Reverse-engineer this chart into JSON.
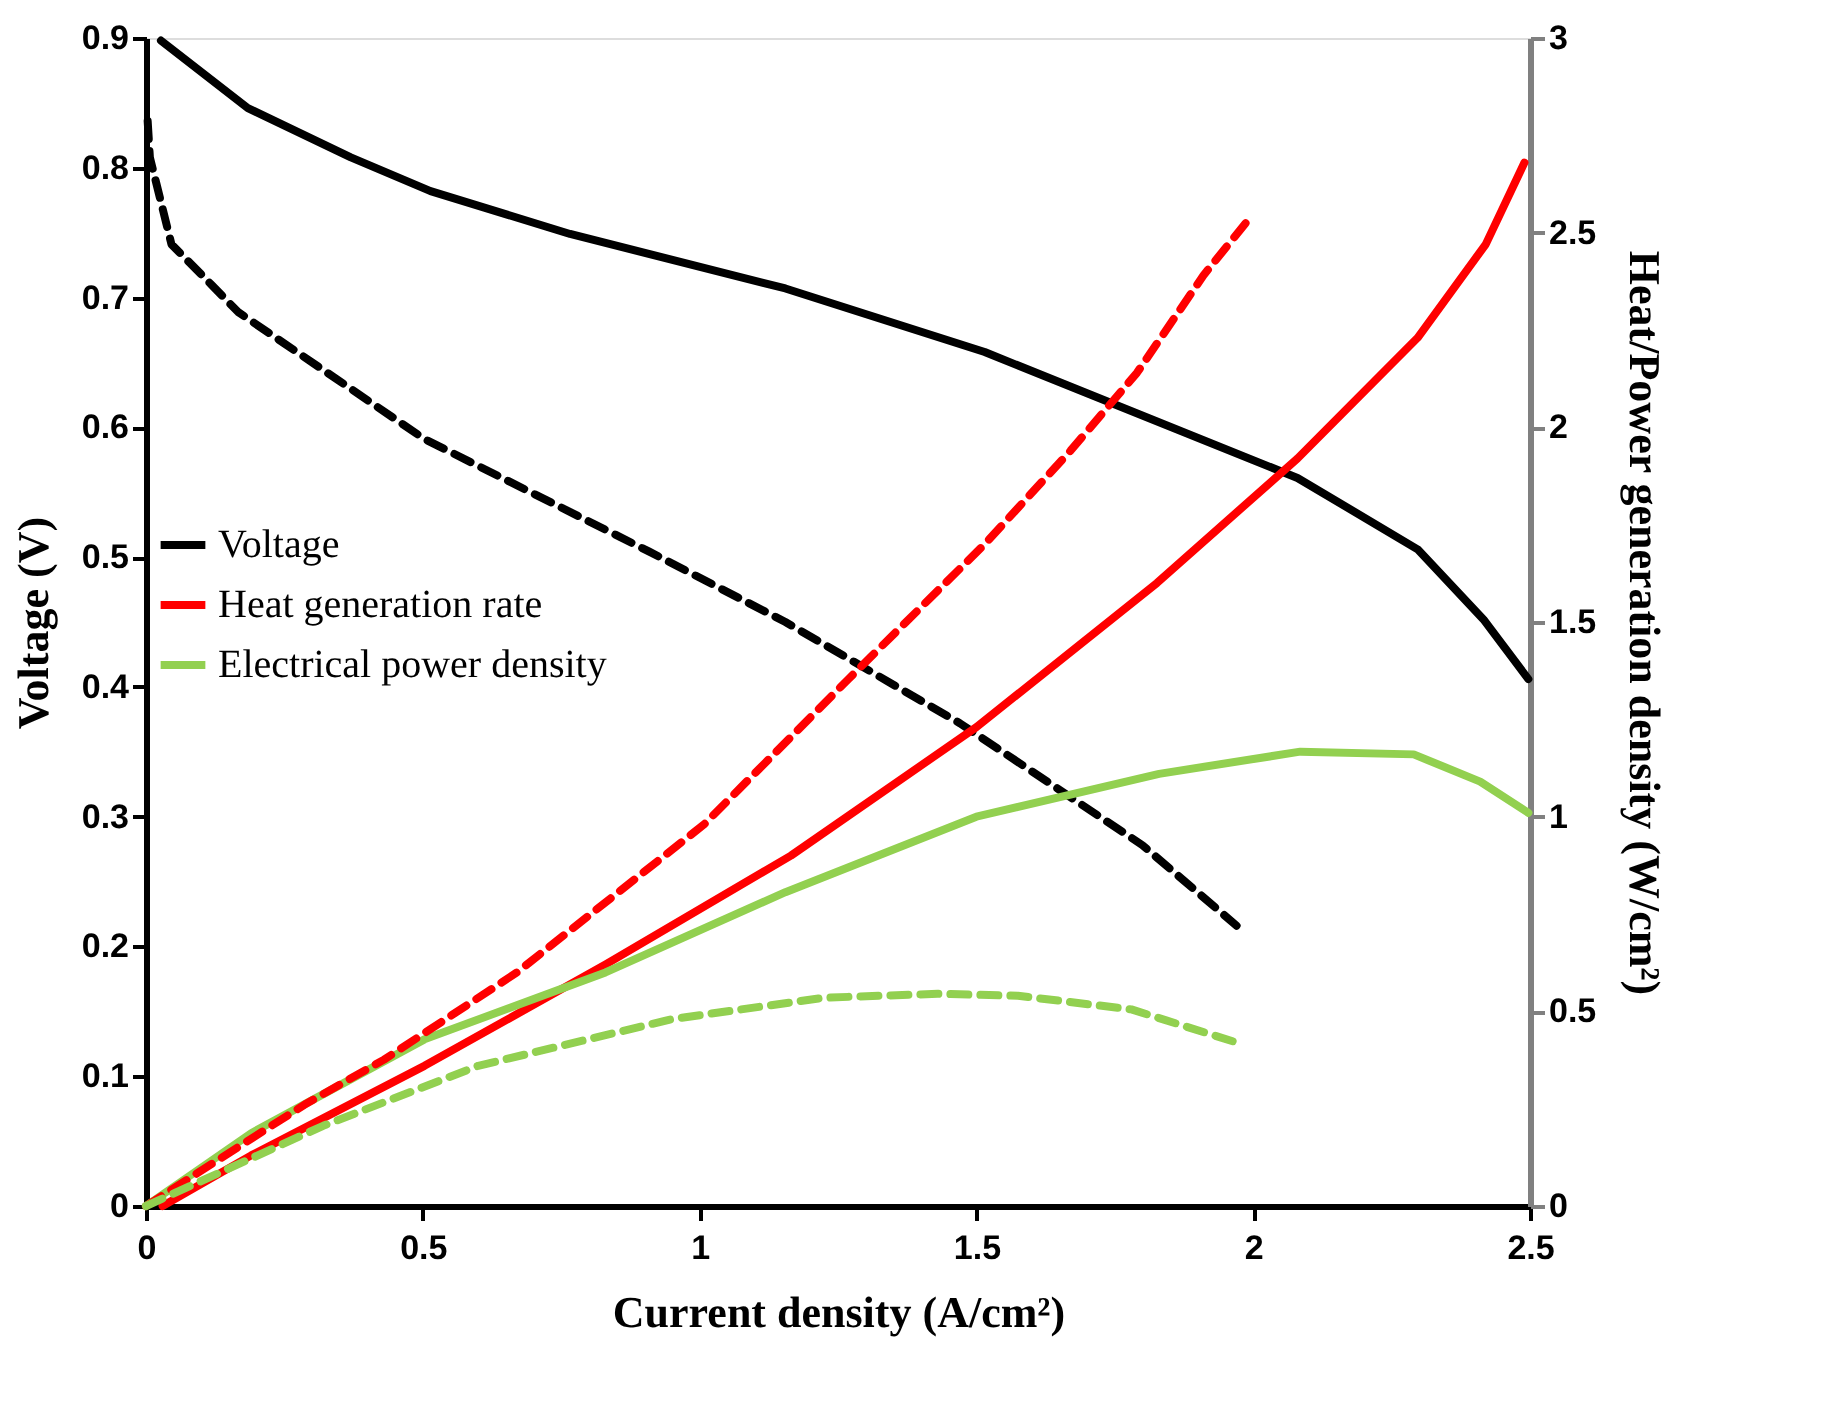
{
  "chart_data": {
    "type": "line",
    "xlabel": "Current density (A/cm²)",
    "ylabel": "Voltage (V)",
    "y2label": "Heat/Power  generation density (W/cm²)",
    "xlim": [
      0,
      2.5
    ],
    "xticks": [
      0,
      0.5,
      1,
      1.5,
      2,
      2.5
    ],
    "ylim": [
      0,
      0.9
    ],
    "yticks": [
      0,
      0.1,
      0.2,
      0.3,
      0.4,
      0.5,
      0.6,
      0.7,
      0.8,
      0.9
    ],
    "y2lim": [
      0,
      3
    ],
    "y2ticks": [
      0,
      0.5,
      1,
      1.5,
      2,
      2.5,
      3
    ],
    "legend": "left",
    "grid": false,
    "marker": "none",
    "series": [
      {
        "name": "Voltage",
        "color": "#000000",
        "line_style": "solid",
        "axis": "y",
        "x": [
          0.027,
          0.184,
          0.37,
          0.514,
          0.766,
          1.155,
          1.515,
          2.08,
          2.297,
          2.416,
          2.497
        ],
        "values": [
          0.898,
          0.846,
          0.808,
          0.782,
          0.749,
          0.707,
          0.658,
          0.561,
          0.506,
          0.452,
          0.406
        ]
      },
      {
        "name": "Heat generation rate",
        "color": "#ff0000",
        "line_style": "solid",
        "axis": "y2",
        "x": [
          0.03,
          0.19,
          0.503,
          0.83,
          1.165,
          1.5,
          1.826,
          2.08,
          2.297,
          2.42,
          2.49
        ],
        "values": [
          0,
          0.13,
          0.36,
          0.62,
          0.9,
          1.23,
          1.6,
          1.92,
          2.23,
          2.47,
          2.68
        ]
      },
      {
        "name": "Electrical power density",
        "color": "#92d050",
        "line_style": "solid",
        "axis": "y2",
        "x": [
          0,
          0.19,
          0.503,
          0.83,
          1.155,
          1.5,
          1.83,
          2.085,
          2.29,
          2.41,
          2.497
        ],
        "values": [
          0,
          0.187,
          0.428,
          0.6,
          0.806,
          1.0,
          1.11,
          1.167,
          1.16,
          1.09,
          1.01
        ]
      },
      {
        "color": "#000000",
        "line_style": "dashed",
        "axis": "y",
        "x": [
          0.003,
          0.007,
          0.046,
          0.118,
          0.166,
          0.503,
          0.91,
          1.155,
          1.47,
          1.8,
          1.97
        ],
        "values": [
          0.836,
          0.808,
          0.741,
          0.71,
          0.689,
          0.591,
          0.504,
          0.45,
          0.372,
          0.278,
          0.216
        ]
      },
      {
        "color": "#ff0000",
        "line_style": "dashed",
        "axis": "y2",
        "x": [
          0,
          0.286,
          0.43,
          0.67,
          1.008,
          1.27,
          1.515,
          1.67,
          1.79,
          1.91,
          1.995
        ],
        "values": [
          0,
          0.26,
          0.376,
          0.6,
          0.98,
          1.355,
          1.7,
          1.94,
          2.14,
          2.39,
          2.54
        ]
      },
      {
        "color": "#92d050",
        "line_style": "dashed",
        "axis": "y2",
        "x": [
          0,
          0.32,
          0.6,
          0.95,
          1.225,
          1.43,
          1.575,
          1.78,
          1.97
        ],
        "values": [
          0,
          0.206,
          0.36,
          0.48,
          0.535,
          0.545,
          0.54,
          0.505,
          0.42
        ]
      }
    ]
  }
}
